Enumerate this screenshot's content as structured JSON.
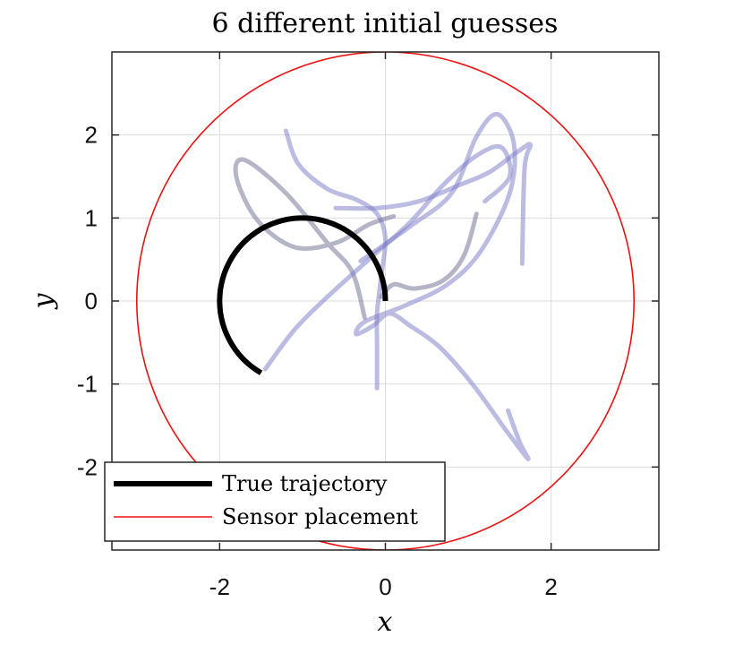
{
  "chart_data": {
    "type": "line",
    "title": "6 different initial guesses",
    "xlabel": "x",
    "ylabel": "y",
    "xlim": [
      -3.3,
      3.3
    ],
    "ylim": [
      -3,
      3
    ],
    "xticks": [
      -2,
      0,
      2
    ],
    "xtick_labels": [
      "-2",
      "0",
      "2"
    ],
    "yticks": [
      -2,
      -1,
      0,
      1,
      2
    ],
    "ytick_labels": [
      "-2",
      "-1",
      "0",
      "1",
      "2"
    ],
    "grid": true,
    "legend_position": "bottom-left",
    "legend": [
      {
        "label": "True trajectory",
        "color": "#000000"
      },
      {
        "label": "Sensor placement",
        "color": "#ee1111"
      }
    ],
    "true_trajectory": {
      "center": [
        -1.0,
        0.0
      ],
      "radius": 1.0,
      "angle_start_deg": 0,
      "angle_end_deg": 240
    },
    "sensor_circle": {
      "center": [
        0,
        0
      ],
      "radius": 3.0
    },
    "guesses": [
      {
        "color": "#7a7ac8",
        "points": [
          [
            -1.2,
            2.05
          ],
          [
            -1.05,
            1.65
          ],
          [
            -0.7,
            1.35
          ],
          [
            -0.35,
            1.22
          ],
          [
            -0.1,
            1.05
          ],
          [
            0.0,
            0.75
          ],
          [
            -0.05,
            0.3
          ],
          [
            -0.1,
            -0.15
          ],
          [
            -0.1,
            -0.55
          ],
          [
            -0.1,
            -1.05
          ]
        ]
      },
      {
        "color": "#6b6b92",
        "points": [
          [
            0.1,
            1.02
          ],
          [
            -0.2,
            0.92
          ],
          [
            -0.6,
            0.7
          ],
          [
            -1.1,
            0.65
          ],
          [
            -1.55,
            0.98
          ],
          [
            -1.8,
            1.5
          ],
          [
            -1.7,
            1.7
          ],
          [
            -1.2,
            1.3
          ],
          [
            -0.7,
            0.7
          ],
          [
            -0.4,
            0.35
          ],
          [
            -0.25,
            -0.2
          ]
        ]
      },
      {
        "color": "#7a7ac8",
        "points": [
          [
            1.65,
            0.45
          ],
          [
            1.68,
            1.6
          ],
          [
            1.75,
            1.88
          ],
          [
            1.6,
            1.8
          ],
          [
            1.25,
            1.55
          ],
          [
            0.9,
            1.4
          ],
          [
            0.4,
            1.2
          ],
          [
            -0.1,
            1.12
          ],
          [
            -0.6,
            1.12
          ]
        ]
      },
      {
        "color": "#7a7ac8",
        "points": [
          [
            -1.45,
            -0.82
          ],
          [
            -1.1,
            -0.35
          ],
          [
            -0.7,
            0.05
          ],
          [
            -0.2,
            0.5
          ],
          [
            0.3,
            0.95
          ],
          [
            0.7,
            1.4
          ],
          [
            1.1,
            1.75
          ],
          [
            1.4,
            1.85
          ],
          [
            1.5,
            1.5
          ],
          [
            1.2,
            1.2
          ]
        ]
      },
      {
        "color": "#7a7ac8",
        "points": [
          [
            -0.3,
            0.48
          ],
          [
            0.3,
            0.9
          ],
          [
            0.8,
            1.3
          ],
          [
            1.1,
            1.98
          ],
          [
            1.35,
            2.25
          ],
          [
            1.55,
            1.9
          ],
          [
            1.5,
            1.3
          ],
          [
            1.15,
            0.6
          ],
          [
            0.75,
            0.2
          ],
          [
            0.25,
            -0.05
          ],
          [
            -0.25,
            -0.25
          ],
          [
            -0.35,
            -0.4
          ],
          [
            -0.15,
            -0.3
          ],
          [
            0.05,
            -0.15
          ],
          [
            0.3,
            -0.3
          ],
          [
            0.65,
            -0.55
          ],
          [
            1.05,
            -1.0
          ],
          [
            1.45,
            -1.55
          ],
          [
            1.72,
            -1.9
          ],
          [
            1.62,
            -1.7
          ],
          [
            1.48,
            -1.32
          ]
        ]
      },
      {
        "color": "#6b6b92",
        "points": [
          [
            1.1,
            1.05
          ],
          [
            0.95,
            0.55
          ],
          [
            0.7,
            0.25
          ],
          [
            0.35,
            0.15
          ],
          [
            0.1,
            0.2
          ],
          [
            -0.05,
            0.05
          ]
        ]
      }
    ]
  }
}
